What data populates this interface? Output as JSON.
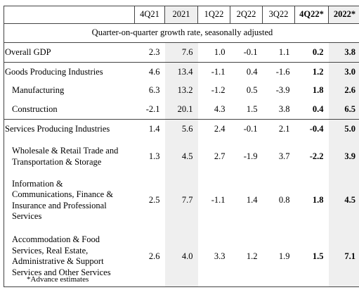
{
  "table": {
    "columns": [
      "4Q21",
      "2021",
      "1Q22",
      "2Q22",
      "3Q22",
      "4Q22*",
      "2022*"
    ],
    "subtitle": "Quarter-on-quarter growth rate, seasonally adjusted",
    "rows": [
      {
        "label": "Overall GDP",
        "values": [
          "2.3",
          "7.6",
          "1.0",
          "-0.1",
          "1.1",
          "0.2",
          "3.8"
        ]
      },
      {
        "label": "Goods Producing Industries",
        "values": [
          "4.6",
          "13.4",
          "-1.1",
          "0.4",
          "-1.6",
          "1.2",
          "3.0"
        ]
      },
      {
        "label": "Manufacturing",
        "values": [
          "6.3",
          "13.2",
          "-1.2",
          "0.5",
          "-3.9",
          "1.8",
          "2.6"
        ]
      },
      {
        "label": "Construction",
        "values": [
          "-2.1",
          "20.1",
          "4.3",
          "1.5",
          "3.8",
          "0.4",
          "6.5"
        ]
      },
      {
        "label": "Services Producing Industries",
        "values": [
          "1.4",
          "5.6",
          "2.4",
          "-0.1",
          "2.1",
          "-0.4",
          "5.0"
        ]
      },
      {
        "label": "Wholesale & Retail Trade and Transportation & Storage",
        "values": [
          "1.3",
          "4.5",
          "2.7",
          "-1.9",
          "3.7",
          "-2.2",
          "3.9"
        ]
      },
      {
        "label": "Information & Communications, Finance & Insurance and Professional Services",
        "values": [
          "2.5",
          "7.7",
          "-1.1",
          "1.4",
          "0.8",
          "1.8",
          "4.5"
        ]
      },
      {
        "label": "Accommodation & Food Services, Real Estate, Administrative & Support Services and Other Services",
        "values": [
          "2.6",
          "4.0",
          "3.3",
          "1.2",
          "1.9",
          "1.5",
          "7.1"
        ]
      }
    ]
  },
  "footnote": "*Advance estimates"
}
